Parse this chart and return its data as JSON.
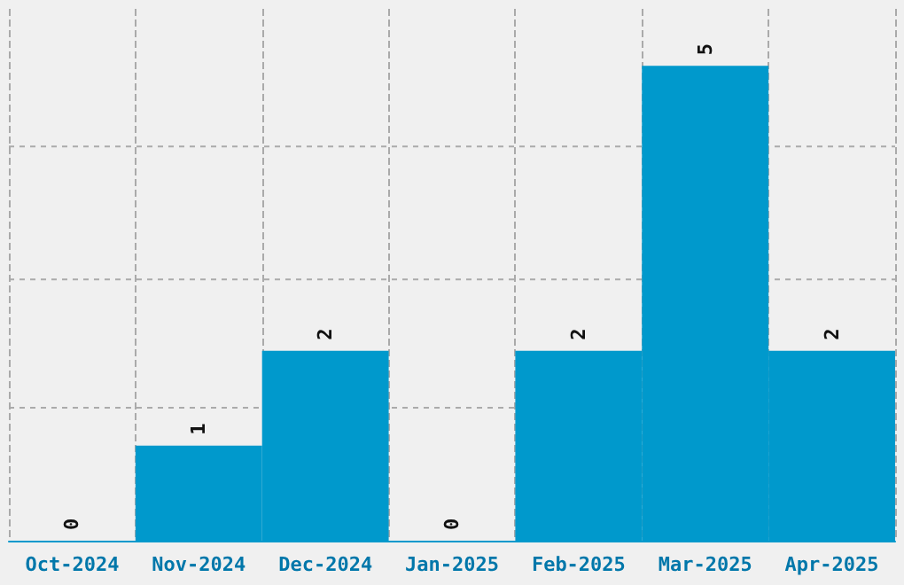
{
  "chart_data": {
    "type": "bar",
    "categories": [
      "Oct-2024",
      "Nov-2024",
      "Dec-2024",
      "Jan-2025",
      "Feb-2025",
      "Mar-2025",
      "Apr-2025"
    ],
    "values": [
      0,
      1,
      2,
      0,
      2,
      5,
      2
    ],
    "color": "#0099cc",
    "data_labels": true,
    "grid": true,
    "tick_labels": "x",
    "ylim": [
      0,
      5.6
    ],
    "yticks": [
      {
        "value": 1.4,
        "label": null
      },
      {
        "value": 2.75,
        "label": null
      },
      {
        "value": 4.15,
        "label": null
      }
    ]
  }
}
